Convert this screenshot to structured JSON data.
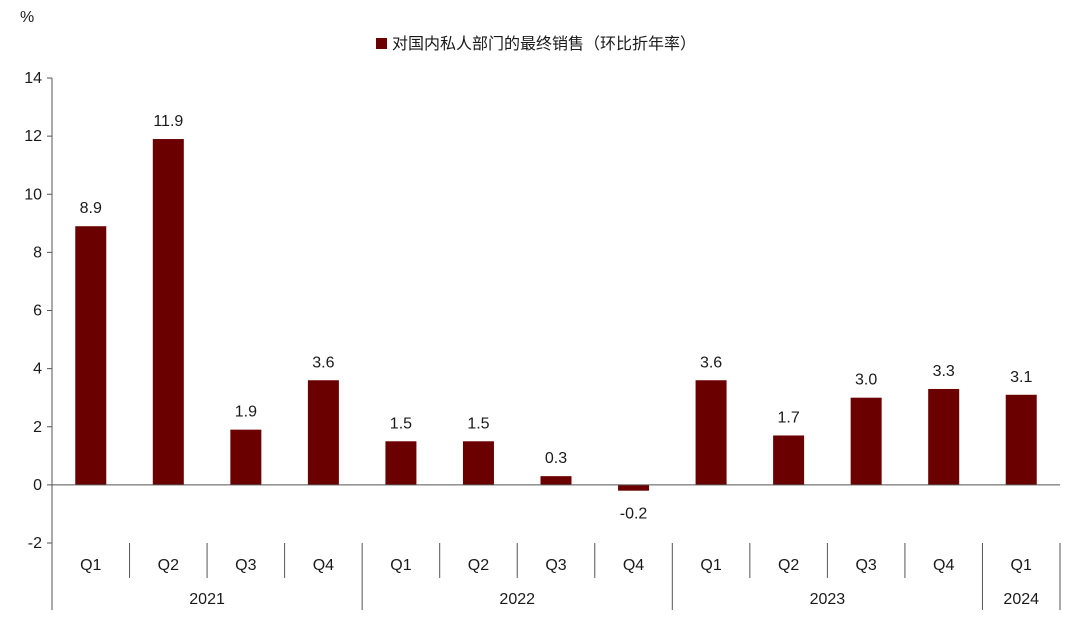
{
  "chart_data": {
    "type": "bar",
    "unit_label": "%",
    "legend": {
      "label": "对国内私人部门的最终销售（环比折年率）",
      "placement": "top-center"
    },
    "ylim": [
      -2,
      14
    ],
    "yticks": [
      -2,
      0,
      2,
      4,
      6,
      8,
      10,
      12,
      14
    ],
    "categories": [
      "Q1",
      "Q2",
      "Q3",
      "Q4",
      "Q1",
      "Q2",
      "Q3",
      "Q4",
      "Q1",
      "Q2",
      "Q3",
      "Q4",
      "Q1"
    ],
    "years": [
      {
        "label": "2021",
        "count": 4
      },
      {
        "label": "2022",
        "count": 4
      },
      {
        "label": "2023",
        "count": 4
      },
      {
        "label": "2024",
        "count": 1
      }
    ],
    "values": [
      8.9,
      11.9,
      1.9,
      3.6,
      1.5,
      1.5,
      0.3,
      -0.2,
      3.6,
      1.7,
      3.0,
      3.3,
      3.1
    ],
    "value_labels": [
      "8.9",
      "11.9",
      "1.9",
      "3.6",
      "1.5",
      "1.5",
      "0.3",
      "-0.2",
      "3.6",
      "1.7",
      "3.0",
      "3.3",
      "3.1"
    ],
    "bar_color": "#6b0000",
    "grid": false
  }
}
